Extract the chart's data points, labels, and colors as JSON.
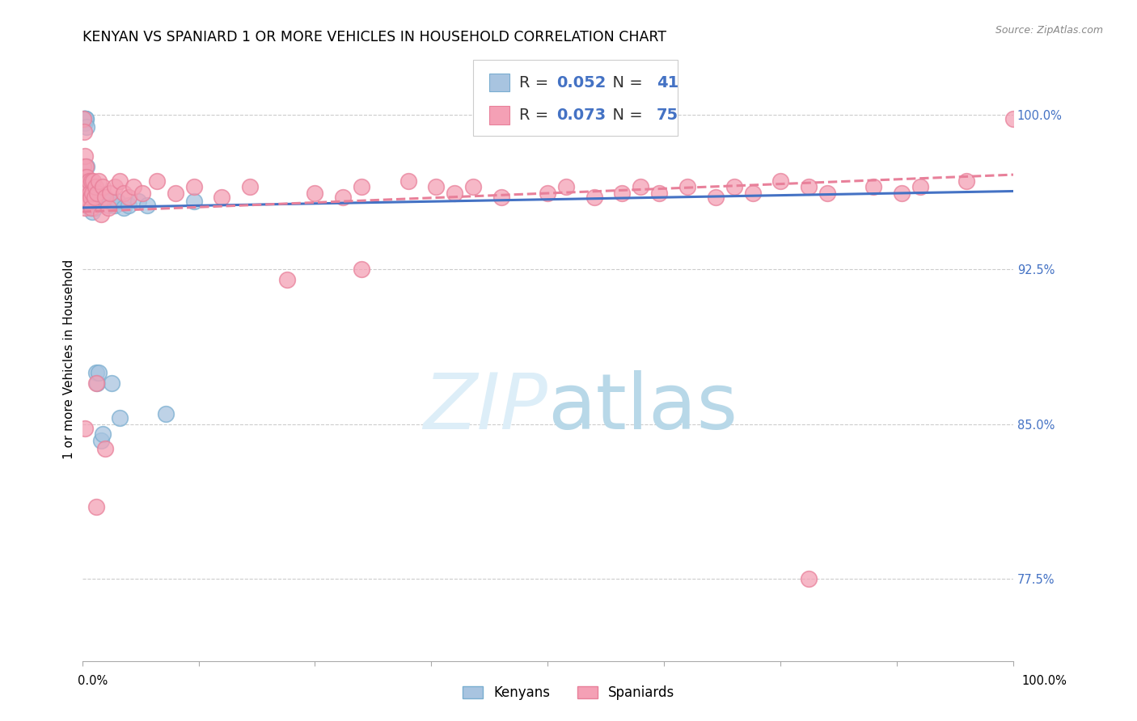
{
  "title": "KENYAN VS SPANIARD 1 OR MORE VEHICLES IN HOUSEHOLD CORRELATION CHART",
  "source": "Source: ZipAtlas.com",
  "ylabel": "1 or more Vehicles in Household",
  "xlim": [
    0.0,
    1.0
  ],
  "ylim": [
    0.735,
    1.028
  ],
  "yticks": [
    0.775,
    0.85,
    0.925,
    1.0
  ],
  "ytick_labels": [
    "77.5%",
    "85.0%",
    "92.5%",
    "100.0%"
  ],
  "legend_R_kenyan": "0.052",
  "legend_N_kenyan": "41",
  "legend_R_spaniard": "0.073",
  "legend_N_spaniard": "75",
  "kenyan_color": "#a8c4e0",
  "kenyan_edge_color": "#7aaed0",
  "spaniard_color": "#f4a0b5",
  "spaniard_edge_color": "#e8809a",
  "kenyan_line_color": "#4472c4",
  "spaniard_line_color": "#e8809a",
  "background_color": "#ffffff",
  "watermark_color": "#ddeef8",
  "title_fontsize": 12.5,
  "axis_label_fontsize": 11,
  "tick_fontsize": 10.5,
  "kenyan_line_start": 0.955,
  "kenyan_line_end": 0.963,
  "spaniard_line_start": 0.953,
  "spaniard_line_end": 0.971,
  "kenyan_x": [
    0.001,
    0.002,
    0.002,
    0.003,
    0.003,
    0.003,
    0.003,
    0.004,
    0.004,
    0.005,
    0.005,
    0.006,
    0.006,
    0.007,
    0.008,
    0.008,
    0.009,
    0.009,
    0.01,
    0.01,
    0.011,
    0.012,
    0.013,
    0.015,
    0.016,
    0.018,
    0.02,
    0.022,
    0.025,
    0.028,
    0.03,
    0.032,
    0.035,
    0.038,
    0.04,
    0.045,
    0.05,
    0.06,
    0.07,
    0.09,
    0.12
  ],
  "kenyan_y": [
    0.998,
    0.998,
    0.998,
    0.998,
    0.998,
    0.998,
    0.996,
    0.998,
    0.998,
    0.994,
    0.975,
    0.968,
    0.96,
    0.958,
    0.962,
    0.956,
    0.96,
    0.956,
    0.958,
    0.955,
    0.953,
    0.96,
    0.955,
    0.875,
    0.87,
    0.875,
    0.842,
    0.845,
    0.958,
    0.956,
    0.958,
    0.87,
    0.956,
    0.958,
    0.853,
    0.955,
    0.956,
    0.958,
    0.956,
    0.855,
    0.958
  ],
  "spaniard_x": [
    0.001,
    0.001,
    0.002,
    0.002,
    0.003,
    0.003,
    0.003,
    0.003,
    0.004,
    0.004,
    0.005,
    0.005,
    0.006,
    0.006,
    0.007,
    0.007,
    0.008,
    0.009,
    0.01,
    0.01,
    0.011,
    0.012,
    0.013,
    0.014,
    0.015,
    0.016,
    0.018,
    0.02,
    0.022,
    0.025,
    0.028,
    0.03,
    0.035,
    0.04,
    0.045,
    0.05,
    0.055,
    0.065,
    0.08,
    0.1,
    0.12,
    0.15,
    0.18,
    0.22,
    0.25,
    0.28,
    0.3,
    0.35,
    0.38,
    0.4,
    0.42,
    0.45,
    0.5,
    0.52,
    0.55,
    0.58,
    0.6,
    0.62,
    0.65,
    0.68,
    0.7,
    0.72,
    0.75,
    0.78,
    0.8,
    0.85,
    0.88,
    0.9,
    0.95,
    1.0,
    0.003,
    0.015,
    0.025,
    0.3,
    0.78
  ],
  "spaniard_y": [
    0.998,
    0.975,
    0.992,
    0.97,
    0.98,
    0.965,
    0.96,
    0.955,
    0.975,
    0.96,
    0.97,
    0.96,
    0.965,
    0.958,
    0.968,
    0.958,
    0.962,
    0.96,
    0.968,
    0.955,
    0.962,
    0.968,
    0.96,
    0.965,
    0.87,
    0.962,
    0.968,
    0.952,
    0.965,
    0.96,
    0.955,
    0.962,
    0.965,
    0.968,
    0.962,
    0.96,
    0.965,
    0.962,
    0.968,
    0.962,
    0.965,
    0.96,
    0.965,
    0.92,
    0.962,
    0.96,
    0.965,
    0.968,
    0.965,
    0.962,
    0.965,
    0.96,
    0.962,
    0.965,
    0.96,
    0.962,
    0.965,
    0.962,
    0.965,
    0.96,
    0.965,
    0.962,
    0.968,
    0.965,
    0.962,
    0.965,
    0.962,
    0.965,
    0.968,
    0.998,
    0.848,
    0.81,
    0.838,
    0.925,
    0.775
  ]
}
